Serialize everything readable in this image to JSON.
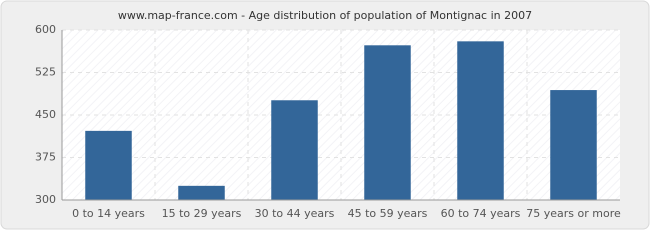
{
  "chart_data": {
    "type": "bar",
    "title": "www.map-france.com - Age distribution of population of Montignac in 2007",
    "categories": [
      "0 to 14 years",
      "15 to 29 years",
      "30 to 44 years",
      "45 to 59 years",
      "60 to 74 years",
      "75 years or more"
    ],
    "values": [
      422,
      325,
      476,
      573,
      580,
      494
    ],
    "color": "#336699",
    "ylim": [
      300,
      600
    ],
    "yticks": [
      300,
      375,
      450,
      525,
      600
    ],
    "grid": true
  }
}
